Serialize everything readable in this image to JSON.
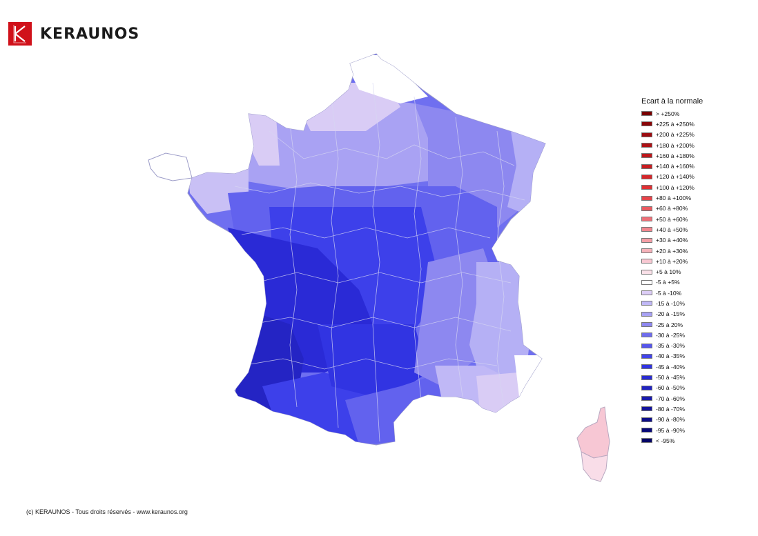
{
  "brand": {
    "name": "KERAUNOS",
    "logo_letter": "K"
  },
  "map": {
    "mainland_fill_default": "#6f6ff0",
    "border_color": "#c8c8f0",
    "regions": [
      {
        "name": "north-coast",
        "class": "-5 à +5%",
        "color": "#ffffff"
      },
      {
        "name": "north-east-belt",
        "class": "-5 à -10%",
        "color": "#d9ccf5"
      },
      {
        "name": "normandy",
        "class": "-5 à -10%",
        "color": "#d9ccf5"
      },
      {
        "name": "brittany",
        "class": "-5 à +5%",
        "color": "#ffffff"
      },
      {
        "name": "paris-basin",
        "class": "-20 à -15%",
        "color": "#a9a2f3"
      },
      {
        "name": "north-east",
        "class": "-25 à 20%",
        "color": "#8d88f0"
      },
      {
        "name": "alsace",
        "class": "-15 à -10%",
        "color": "#b5b0f5"
      },
      {
        "name": "loire",
        "class": "-30 à -25%",
        "color": "#6262ee"
      },
      {
        "name": "centre",
        "class": "-40 à -35%",
        "color": "#3d40ea"
      },
      {
        "name": "south-west",
        "class": "-50 à -45%",
        "color": "#2a2ad6"
      },
      {
        "name": "gironde-landes",
        "class": "-60 à -50%",
        "color": "#2424c4"
      },
      {
        "name": "pyrenees",
        "class": "-40 à -35%",
        "color": "#3d40ea"
      },
      {
        "name": "languedoc",
        "class": "-30 à -25%",
        "color": "#6262ee"
      },
      {
        "name": "rhone-valley",
        "class": "-25 à 20%",
        "color": "#8d88f0"
      },
      {
        "name": "alps",
        "class": "-15 à -10%",
        "color": "#b5b0f5"
      },
      {
        "name": "provence-coast",
        "class": "-5 à -10%",
        "color": "#d9ccf5"
      },
      {
        "name": "alpes-maritimes",
        "class": "-5 à +5%",
        "color": "#ffffff"
      },
      {
        "name": "corsica-north",
        "class": "+10 à +20%",
        "color": "#f7c7d4"
      },
      {
        "name": "corsica-south",
        "class": "+5 à 10%",
        "color": "#f9dde8"
      }
    ]
  },
  "legend": {
    "title": "Ecart à la normale",
    "items": [
      {
        "label": "> +250%",
        "color": "#7a0000"
      },
      {
        "label": "+225 à +250%",
        "color": "#8a0608"
      },
      {
        "label": "+200 à +225%",
        "color": "#9c0c10"
      },
      {
        "label": "+180 à +200%",
        "color": "#ad1216"
      },
      {
        "label": "+160 à +180%",
        "color": "#bc181c"
      },
      {
        "label": "+140 à +160%",
        "color": "#c81e22"
      },
      {
        "label": "+120 à +140%",
        "color": "#d4262a"
      },
      {
        "label": "+100 à +120%",
        "color": "#e03034"
      },
      {
        "label": "+80 à +100%",
        "color": "#e6444a"
      },
      {
        "label": "+60 à +80%",
        "color": "#ea5a60"
      },
      {
        "label": "+50 à +60%",
        "color": "#ee7078"
      },
      {
        "label": "+40 à +50%",
        "color": "#f2868e"
      },
      {
        "label": "+30 à +40%",
        "color": "#f49ea6"
      },
      {
        "label": "+20 à +30%",
        "color": "#f6b2ba"
      },
      {
        "label": "+10 à +20%",
        "color": "#f8c8d2"
      },
      {
        "label": "+5 à 10%",
        "color": "#fae0e8"
      },
      {
        "label": "-5 à +5%",
        "color": "#ffffff"
      },
      {
        "label": "-5 à -10%",
        "color": "#dccdf6"
      },
      {
        "label": "-15 à -10%",
        "color": "#c0b8f6"
      },
      {
        "label": "-20 à -15%",
        "color": "#a8a2f4"
      },
      {
        "label": "-25 à 20%",
        "color": "#8e88f0"
      },
      {
        "label": "-30 à -25%",
        "color": "#6e6cee"
      },
      {
        "label": "-35 à -30%",
        "color": "#5656ec"
      },
      {
        "label": "-40 à -35%",
        "color": "#4244ea"
      },
      {
        "label": "-45 à -40%",
        "color": "#3134e2"
      },
      {
        "label": "-50 à -45%",
        "color": "#2a2cd2"
      },
      {
        "label": "-60 à -50%",
        "color": "#2224bf"
      },
      {
        "label": "-70 à -60%",
        "color": "#1a1cad"
      },
      {
        "label": "-80 à -70%",
        "color": "#13149b"
      },
      {
        "label": "-90 à -80%",
        "color": "#0d0e89"
      },
      {
        "label": "-95 à -90%",
        "color": "#080978"
      },
      {
        "label": "< -95%",
        "color": "#040567"
      }
    ]
  },
  "footer": {
    "copyright": "(c) KERAUNOS - Tous droits réservés - www.keraunos.org"
  }
}
